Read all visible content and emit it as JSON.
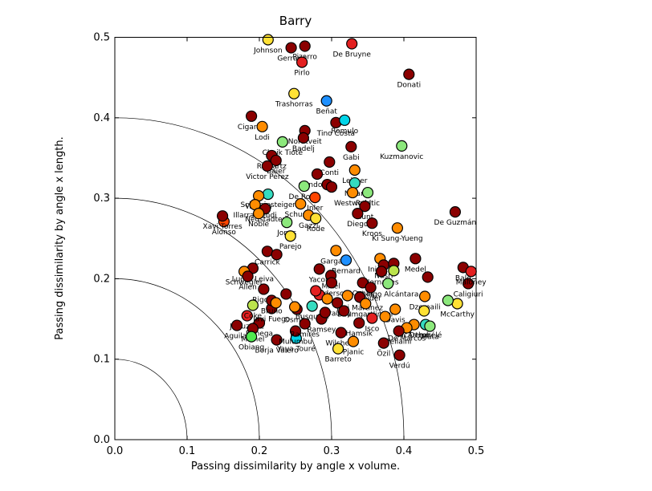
{
  "figure": {
    "title": "Barry"
  },
  "chart_data": {
    "type": "scatter",
    "title": "Barry",
    "xlabel": "Passing dissimilarity by angle x volume.",
    "ylabel": "Passing dissimilarity by angle x length.",
    "xlim": [
      0.0,
      0.5
    ],
    "ylim": [
      0.0,
      0.5
    ],
    "xticks": [
      "0.0",
      "0.1",
      "0.2",
      "0.3",
      "0.4",
      "0.5"
    ],
    "yticks": [
      "0.0",
      "0.1",
      "0.2",
      "0.3",
      "0.4",
      "0.5"
    ],
    "grid": false,
    "legend": "none",
    "quarter_circle_arc_radii": [
      0.1,
      0.2,
      0.3,
      0.4
    ],
    "palette": {
      "darkred": "#8B0000",
      "red": "#E32020",
      "orangered": "#FF4500",
      "orange": "#FF8C00",
      "yellow": "#FFE135",
      "yellowgreen": "#BCE44C",
      "lightgreen": "#8CE87C",
      "green": "#50E850",
      "teal": "#35DCC0",
      "cyan": "#00D4E8",
      "blue": "#1E90FF"
    },
    "points": [
      {
        "label": "Johnson",
        "x": 0.212,
        "y": 0.497,
        "c": "yellow"
      },
      {
        "label": "Gerrard",
        "x": 0.244,
        "y": 0.487,
        "c": "darkred"
      },
      {
        "label": "Pizarro",
        "x": 0.263,
        "y": 0.489,
        "c": "darkred"
      },
      {
        "label": "Pirlo",
        "x": 0.259,
        "y": 0.469,
        "c": "red"
      },
      {
        "label": "De Bruyne",
        "x": 0.328,
        "y": 0.492,
        "c": "red"
      },
      {
        "label": "Donati",
        "x": 0.407,
        "y": 0.454,
        "c": "darkred"
      },
      {
        "label": "Trashorras",
        "x": 0.248,
        "y": 0.43,
        "c": "yellow"
      },
      {
        "label": "Beñat",
        "x": 0.293,
        "y": 0.421,
        "c": "blue"
      },
      {
        "label": "Cigarini",
        "x": 0.189,
        "y": 0.402,
        "c": "darkred"
      },
      {
        "label": "Lodi",
        "x": 0.204,
        "y": 0.389,
        "c": "orange"
      },
      {
        "label": "Tino Costa",
        "x": 0.306,
        "y": 0.394,
        "c": "darkred"
      },
      {
        "label": "Romulo",
        "x": 0.318,
        "y": 0.397,
        "c": "cyan"
      },
      {
        "label": "Nordtveit",
        "x": 0.263,
        "y": 0.384,
        "c": "darkred"
      },
      {
        "label": "Badelj",
        "x": 0.261,
        "y": 0.375,
        "c": "darkred"
      },
      {
        "label": "Cheik Tioté",
        "x": 0.232,
        "y": 0.37,
        "c": "lightgreen"
      },
      {
        "label": "Reinartz",
        "x": 0.217,
        "y": 0.353,
        "c": "darkred"
      },
      {
        "label": "Baier",
        "x": 0.223,
        "y": 0.347,
        "c": "darkred"
      },
      {
        "label": "Victor Pérez",
        "x": 0.211,
        "y": 0.34,
        "c": "darkred"
      },
      {
        "label": "Gabi",
        "x": 0.327,
        "y": 0.364,
        "c": "darkred"
      },
      {
        "label": "Kuzmanovic",
        "x": 0.397,
        "y": 0.365,
        "c": "lightgreen"
      },
      {
        "label": "Conti",
        "x": 0.297,
        "y": 0.345,
        "c": "darkred"
      },
      {
        "label": "Leitner",
        "x": 0.332,
        "y": 0.335,
        "c": "orange"
      },
      {
        "label": "Gündogan",
        "x": 0.28,
        "y": 0.33,
        "c": "darkred"
      },
      {
        "label": "",
        "x": 0.294,
        "y": 0.317,
        "c": "darkred"
      },
      {
        "label": "",
        "x": 0.3,
        "y": 0.314,
        "c": "darkred"
      },
      {
        "label": "De Rossi",
        "x": 0.262,
        "y": 0.315,
        "c": "lightgreen"
      },
      {
        "label": "Inler",
        "x": 0.277,
        "y": 0.301,
        "c": "orangered"
      },
      {
        "label": "Nolan",
        "x": 0.332,
        "y": 0.319,
        "c": "teal"
      },
      {
        "label": "Westwood",
        "x": 0.329,
        "y": 0.307,
        "c": "orange"
      },
      {
        "label": "Rakitic",
        "x": 0.35,
        "y": 0.307,
        "c": "lightgreen"
      },
      {
        "label": "Hunt",
        "x": 0.346,
        "y": 0.29,
        "c": "darkred"
      },
      {
        "label": "Diego",
        "x": 0.336,
        "y": 0.281,
        "c": "darkred"
      },
      {
        "label": "Kroos",
        "x": 0.356,
        "y": 0.269,
        "c": "darkred"
      },
      {
        "label": "Ki Sung-Yueng",
        "x": 0.391,
        "y": 0.263,
        "c": "orange"
      },
      {
        "label": "De Guzmán",
        "x": 0.471,
        "y": 0.283,
        "c": "darkred"
      },
      {
        "label": "Schweinsteiger",
        "x": 0.212,
        "y": 0.305,
        "c": "teal"
      },
      {
        "label": "William",
        "x": 0.199,
        "y": 0.303,
        "c": "orange"
      },
      {
        "label": "Illarramendi",
        "x": 0.194,
        "y": 0.292,
        "c": "orange"
      },
      {
        "label": "Neustädter",
        "x": 0.208,
        "y": 0.287,
        "c": "darkred"
      },
      {
        "label": "Noble",
        "x": 0.199,
        "y": 0.281,
        "c": "orange"
      },
      {
        "label": "Schuster",
        "x": 0.257,
        "y": 0.293,
        "c": "orange"
      },
      {
        "label": "Gazzi",
        "x": 0.268,
        "y": 0.279,
        "c": "orange"
      },
      {
        "label": "Rode",
        "x": 0.278,
        "y": 0.275,
        "c": "yellow"
      },
      {
        "label": "Jones",
        "x": 0.238,
        "y": 0.27,
        "c": "lightgreen"
      },
      {
        "label": "Parejo",
        "x": 0.243,
        "y": 0.253,
        "c": "yellow"
      },
      {
        "label": "Alonso",
        "x": 0.151,
        "y": 0.271,
        "c": "orangered"
      },
      {
        "label": "Xavi Torres",
        "x": 0.149,
        "y": 0.278,
        "c": "darkred"
      },
      {
        "label": "Carrick",
        "x": 0.211,
        "y": 0.234,
        "c": "darkred"
      },
      {
        "label": "",
        "x": 0.224,
        "y": 0.23,
        "c": "darkred"
      },
      {
        "label": "Lucas Leiva",
        "x": 0.191,
        "y": 0.213,
        "c": "darkred"
      },
      {
        "label": "Schwegler",
        "x": 0.179,
        "y": 0.209,
        "c": "orange"
      },
      {
        "label": "Allen",
        "x": 0.184,
        "y": 0.203,
        "c": "darkred"
      },
      {
        "label": "Gargano",
        "x": 0.306,
        "y": 0.235,
        "c": "orange"
      },
      {
        "label": "Bernard",
        "x": 0.32,
        "y": 0.223,
        "c": "blue"
      },
      {
        "label": "Yacob",
        "x": 0.283,
        "y": 0.212,
        "c": "darkred"
      },
      {
        "label": "Mikel",
        "x": 0.299,
        "y": 0.204,
        "c": "darkred"
      },
      {
        "label": "Anderson",
        "x": 0.3,
        "y": 0.195,
        "c": "darkred"
      },
      {
        "label": "Iniesta",
        "x": 0.367,
        "y": 0.225,
        "c": "orange"
      },
      {
        "label": "Nasri",
        "x": 0.372,
        "y": 0.217,
        "c": "darkred"
      },
      {
        "label": "Hernanes",
        "x": 0.369,
        "y": 0.209,
        "c": "darkred"
      },
      {
        "label": "",
        "x": 0.386,
        "y": 0.219,
        "c": "darkred"
      },
      {
        "label": "Medel",
        "x": 0.416,
        "y": 0.225,
        "c": "darkred"
      },
      {
        "label": "",
        "x": 0.386,
        "y": 0.21,
        "c": "yellowgreen"
      },
      {
        "label": "Thiago Alcántara",
        "x": 0.378,
        "y": 0.194,
        "c": "lightgreen"
      },
      {
        "label": "Oscar",
        "x": 0.343,
        "y": 0.195,
        "c": "darkred"
      },
      {
        "label": "Taider",
        "x": 0.354,
        "y": 0.189,
        "c": "darkred"
      },
      {
        "label": "Javi Martinez",
        "x": 0.339,
        "y": 0.177,
        "c": "darkred"
      },
      {
        "label": "Baumgartlinger",
        "x": 0.347,
        "y": 0.169,
        "c": "orange"
      },
      {
        "label": "Davis",
        "x": 0.388,
        "y": 0.162,
        "c": "orange"
      },
      {
        "label": "",
        "x": 0.374,
        "y": 0.153,
        "c": "orange"
      },
      {
        "label": "McArthur",
        "x": 0.414,
        "y": 0.143,
        "c": "orange"
      },
      {
        "label": "De Marcos",
        "x": 0.404,
        "y": 0.139,
        "c": "orange"
      },
      {
        "label": "Dembélé",
        "x": 0.43,
        "y": 0.143,
        "c": "teal"
      },
      {
        "label": "Mata",
        "x": 0.436,
        "y": 0.141,
        "c": "lightgreen"
      },
      {
        "label": "Fellaini",
        "x": 0.393,
        "y": 0.135,
        "c": "darkred"
      },
      {
        "label": "Isco",
        "x": 0.356,
        "y": 0.151,
        "c": "red"
      },
      {
        "label": "Hamsik",
        "x": 0.338,
        "y": 0.145,
        "c": "darkred"
      },
      {
        "label": "Özil",
        "x": 0.372,
        "y": 0.12,
        "c": "darkred"
      },
      {
        "label": "Verdú",
        "x": 0.394,
        "y": 0.105,
        "c": "darkred"
      },
      {
        "label": "Wilshere",
        "x": 0.313,
        "y": 0.133,
        "c": "darkred"
      },
      {
        "label": "Pjanic",
        "x": 0.33,
        "y": 0.122,
        "c": "orange"
      },
      {
        "label": "Barreto",
        "x": 0.309,
        "y": 0.113,
        "c": "yellow"
      },
      {
        "label": "McCarthy",
        "x": 0.474,
        "y": 0.169,
        "c": "yellow"
      },
      {
        "label": "",
        "x": 0.461,
        "y": 0.173,
        "c": "lightgreen"
      },
      {
        "label": "Caligiuri",
        "x": 0.489,
        "y": 0.194,
        "c": "darkred"
      },
      {
        "label": "Bale",
        "x": 0.482,
        "y": 0.214,
        "c": "darkred"
      },
      {
        "label": "Maloney",
        "x": 0.493,
        "y": 0.209,
        "c": "red"
      },
      {
        "label": "",
        "x": 0.433,
        "y": 0.202,
        "c": "darkred"
      },
      {
        "label": "Dzemaili",
        "x": 0.429,
        "y": 0.178,
        "c": "orange"
      },
      {
        "label": "",
        "x": 0.428,
        "y": 0.16,
        "c": "yellow"
      },
      {
        "label": "Junuzovic",
        "x": 0.183,
        "y": 0.154,
        "c": "red"
      },
      {
        "label": "Banega",
        "x": 0.2,
        "y": 0.145,
        "c": "darkred"
      },
      {
        "label": "Aguilar",
        "x": 0.169,
        "y": 0.142,
        "c": "darkred"
      },
      {
        "label": "Michel",
        "x": 0.191,
        "y": 0.138,
        "c": "darkred"
      },
      {
        "label": "Obiang",
        "x": 0.189,
        "y": 0.128,
        "c": "green"
      },
      {
        "label": "Borja Valero",
        "x": 0.224,
        "y": 0.124,
        "c": "darkred"
      },
      {
        "label": "Yaya Touré",
        "x": 0.251,
        "y": 0.126,
        "c": "cyan"
      },
      {
        "label": "Mulumbu",
        "x": 0.25,
        "y": 0.135,
        "c": "darkred"
      },
      {
        "label": "Javi Fuego",
        "x": 0.217,
        "y": 0.163,
        "c": "darkred"
      },
      {
        "label": "Osman",
        "x": 0.252,
        "y": 0.162,
        "c": "darkred"
      },
      {
        "label": "Busquets",
        "x": 0.273,
        "y": 0.166,
        "c": "teal"
      },
      {
        "label": "Bradley",
        "x": 0.308,
        "y": 0.17,
        "c": "darkred"
      },
      {
        "label": "Ramsey",
        "x": 0.286,
        "y": 0.15,
        "c": "darkred"
      },
      {
        "label": "Ramires",
        "x": 0.263,
        "y": 0.144,
        "c": "darkred"
      },
      {
        "label": "Rigoni",
        "x": 0.206,
        "y": 0.187,
        "c": "darkred"
      },
      {
        "label": "Coke",
        "x": 0.191,
        "y": 0.167,
        "c": "yellowgreen"
      },
      {
        "label": "Bruno",
        "x": 0.217,
        "y": 0.173,
        "c": "darkred"
      },
      {
        "label": "",
        "x": 0.249,
        "y": 0.165,
        "c": "orange"
      },
      {
        "label": "",
        "x": 0.237,
        "y": 0.181,
        "c": "darkred"
      },
      {
        "label": "",
        "x": 0.283,
        "y": 0.18,
        "c": "red"
      },
      {
        "label": "",
        "x": 0.294,
        "y": 0.175,
        "c": "orange"
      },
      {
        "label": "",
        "x": 0.317,
        "y": 0.16,
        "c": "darkred"
      },
      {
        "label": "",
        "x": 0.322,
        "y": 0.179,
        "c": "orange"
      },
      {
        "label": "",
        "x": 0.291,
        "y": 0.158,
        "c": "darkred"
      },
      {
        "label": "",
        "x": 0.223,
        "y": 0.17,
        "c": "orange"
      },
      {
        "label": "",
        "x": 0.278,
        "y": 0.185,
        "c": "red"
      }
    ]
  }
}
